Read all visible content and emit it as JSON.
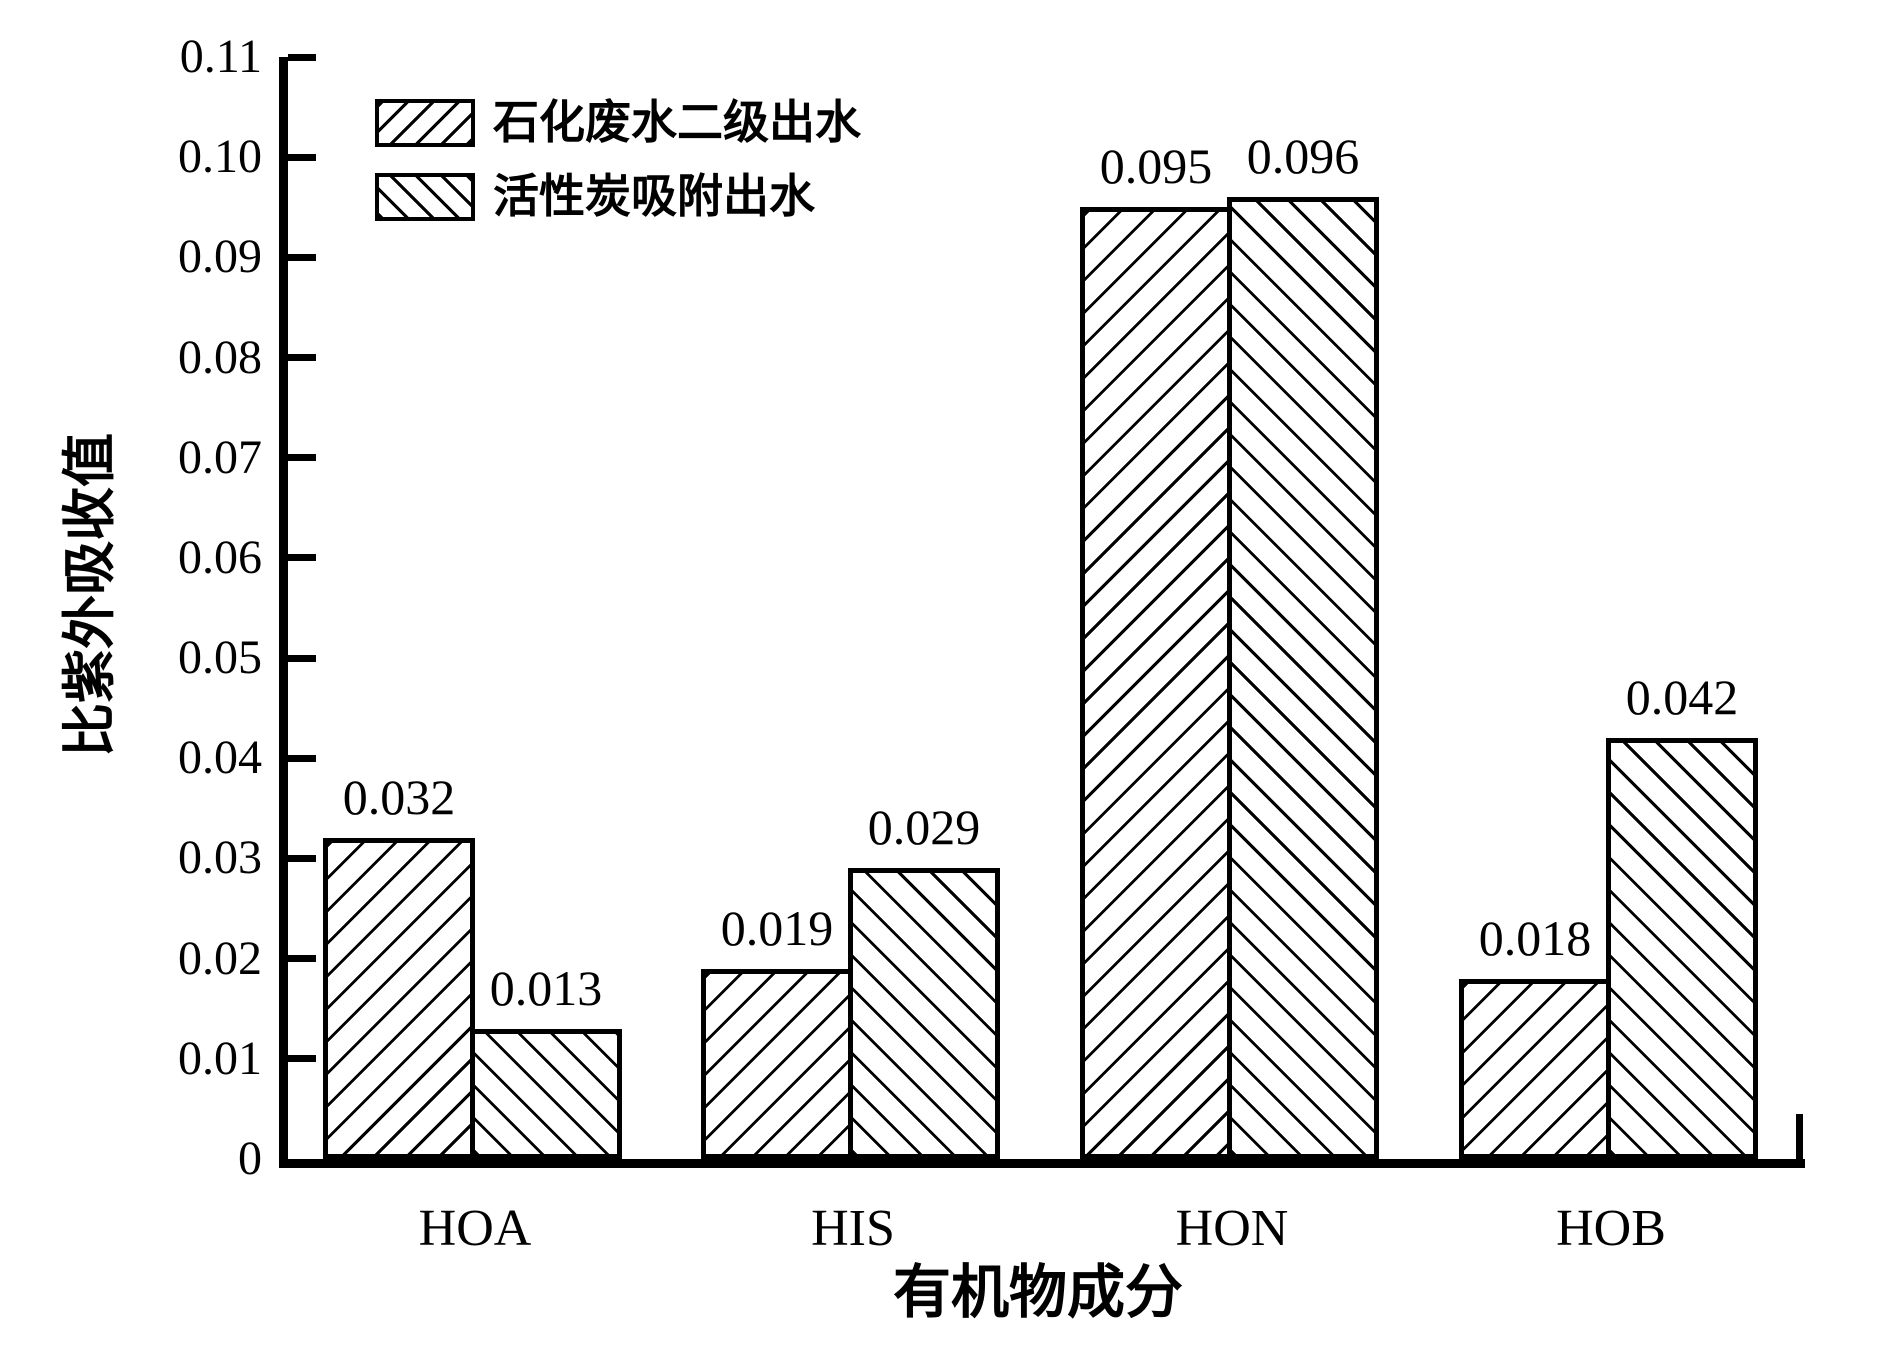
{
  "chart_data": {
    "type": "bar",
    "title": "",
    "xlabel": "有机物成分",
    "ylabel": "比紫外吸收值",
    "categories": [
      "HOA",
      "HIS",
      "HON",
      "HOB"
    ],
    "series": [
      {
        "name": "石化废水二级出水",
        "hatch": "forward-diagonal",
        "values": [
          0.032,
          0.019,
          0.095,
          0.018
        ],
        "value_labels": [
          "0.032",
          "0.019",
          "0.095",
          "0.018"
        ]
      },
      {
        "name": "活性炭吸附出水",
        "hatch": "backward-diagonal",
        "values": [
          0.013,
          0.029,
          0.096,
          0.042
        ],
        "value_labels": [
          "0.013",
          "0.029",
          "0.096",
          "0.042"
        ]
      }
    ],
    "ylim": [
      0,
      0.11
    ],
    "yticks": [
      "0",
      "0.01",
      "0.02",
      "0.03",
      "0.04",
      "0.05",
      "0.06",
      "0.07",
      "0.08",
      "0.09",
      "0.10",
      "0.11"
    ],
    "legend_position": "top-left",
    "grid": false,
    "colors": {
      "ink": "#000000",
      "background": "#ffffff",
      "bar_fill": "#ffffff"
    }
  }
}
